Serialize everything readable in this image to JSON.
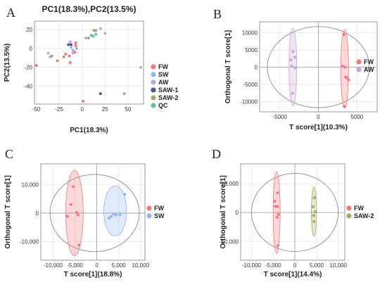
{
  "colors": {
    "FW": "#f0787b",
    "SW": "#8fb5ef",
    "AW": "#c3a6d6",
    "SAW-1": "#4c5791",
    "SAW-2": "#a8a769",
    "QC": "#66bf9a"
  },
  "chart_data": [
    {
      "panel": "A",
      "type": "scatter",
      "title": "PC1(18.3%),PC2(13.5%)",
      "xlabel": "PC1(18.3%)",
      "ylabel": "PC2(13.5%)",
      "xlim": [
        -52,
        67
      ],
      "ylim": [
        -59,
        29
      ],
      "xticks": [
        -50,
        -25,
        0,
        25,
        50
      ],
      "xtick_labels": [
        "-50",
        "-25",
        "0",
        "25",
        "50"
      ],
      "yticks": [
        -40,
        -20,
        0,
        20
      ],
      "ytick_labels": [
        "-40",
        "-20",
        "0",
        "20"
      ],
      "grid": true,
      "legend_position": "right",
      "series": [
        {
          "name": "FW",
          "points": [
            [
              -50,
              -18
            ],
            [
              -27,
              -13
            ],
            [
              -18,
              -6
            ],
            [
              -14,
              -8
            ],
            [
              -13,
              -15
            ],
            [
              -8,
              -4
            ],
            [
              -7,
              3
            ],
            [
              -7,
              6
            ],
            [
              1,
              -56
            ]
          ]
        },
        {
          "name": "SW",
          "points": [
            [
              -12,
              1
            ],
            [
              -10,
              -2
            ],
            [
              20,
              21
            ],
            [
              25,
              16
            ],
            [
              64,
              -20
            ]
          ]
        },
        {
          "name": "AW",
          "points": [
            [
              -37,
              -5
            ],
            [
              -35,
              -9
            ],
            [
              -13,
              7
            ],
            [
              -10,
              -5
            ],
            [
              -6,
              0
            ],
            [
              4,
              11
            ]
          ]
        },
        {
          "name": "SAW-1",
          "points": [
            [
              -15,
              4
            ],
            [
              -12,
              4
            ],
            [
              20,
              -48
            ]
          ]
        },
        {
          "name": "SAW-2",
          "points": [
            [
              -33,
              -8
            ],
            [
              -20,
              -9
            ],
            [
              7,
              11
            ],
            [
              13,
              19
            ],
            [
              15,
              19
            ],
            [
              46,
              -48
            ]
          ]
        },
        {
          "name": "QC",
          "points": [
            [
              10,
              14
            ],
            [
              12,
              13
            ],
            [
              15,
              15
            ]
          ]
        }
      ]
    },
    {
      "panel": "B",
      "type": "scatter",
      "xlabel": "T score[1](10.3%)",
      "ylabel": "Orthogonal T score[1]",
      "xlim": [
        -7600,
        7600
      ],
      "ylim": [
        -13000,
        13200
      ],
      "xticks": [
        -5000,
        0,
        5000
      ],
      "xtick_labels": [
        "-5000",
        "0",
        "5000"
      ],
      "yticks": [
        -10000,
        -5000,
        0,
        5000,
        10000
      ],
      "ytick_labels": [
        "-10000",
        "-5000",
        "0",
        "5000",
        "10000"
      ],
      "grid": true,
      "legend_position": "right",
      "ellipse": {
        "cx": 0,
        "cy": 0,
        "rx": 6600,
        "ry": 11800
      },
      "series": [
        {
          "name": "FW",
          "points": [
            [
              3300,
              9500
            ],
            [
              3150,
              300
            ],
            [
              3450,
              0
            ],
            [
              3500,
              -2900
            ],
            [
              3700,
              -3100
            ],
            [
              3900,
              -3700
            ],
            [
              3350,
              -11400
            ]
          ],
          "group_ellipse": {
            "cx": 3400,
            "cy": -500,
            "rx": 500,
            "ry": 11500
          }
        },
        {
          "name": "AW",
          "points": [
            [
              -3300,
              4500
            ],
            [
              -3050,
              2900
            ],
            [
              -3550,
              2100
            ],
            [
              -3450,
              300
            ],
            [
              -3000,
              -200
            ],
            [
              -3350,
              -7600
            ]
          ],
          "group_ellipse": {
            "cx": -3300,
            "cy": 100,
            "rx": 500,
            "ry": 11300
          }
        }
      ]
    },
    {
      "panel": "C",
      "type": "scatter",
      "xlabel": "T score[1](18.8%)",
      "ylabel": "Orthogonal T score[1]",
      "xlim": [
        -12800,
        11000
      ],
      "ylim": [
        -16500,
        17200
      ],
      "xticks": [
        -10000,
        -5000,
        0,
        5000,
        10000
      ],
      "xtick_labels": [
        "-10,000",
        "-5,000",
        "0",
        "5,000",
        "10,000"
      ],
      "yticks": [
        -10000,
        0,
        10000
      ],
      "ytick_labels": [
        "-10,000",
        "0",
        "10,000"
      ],
      "grid": true,
      "legend_position": "right",
      "ellipse": {
        "cx": -500,
        "cy": 0,
        "rx": 10200,
        "ry": 13500
      },
      "series": [
        {
          "name": "FW",
          "points": [
            [
              -5400,
              9200
            ],
            [
              -5900,
              3000
            ],
            [
              -4600,
              200
            ],
            [
              -4300,
              -700
            ],
            [
              -6700,
              -1200
            ],
            [
              -4100,
              -11200
            ]
          ],
          "group_ellipse": {
            "cx": -5100,
            "cy": 0,
            "rx": 2000,
            "ry": 14900
          }
        },
        {
          "name": "SW",
          "points": [
            [
              6400,
              6500
            ],
            [
              3800,
              -300
            ],
            [
              4400,
              -700
            ],
            [
              5300,
              -600
            ],
            [
              3300,
              -1200
            ],
            [
              2800,
              -1800
            ]
          ],
          "group_ellipse": {
            "cx": 4200,
            "cy": 700,
            "rx": 2600,
            "ry": 8800
          }
        }
      ]
    },
    {
      "panel": "D",
      "type": "scatter",
      "xlabel": "T score[1](14.4%)",
      "ylabel": "Orthogonal T score[1]",
      "xlim": [
        -12500,
        11500
      ],
      "ylim": [
        -16500,
        16800
      ],
      "xticks": [
        -10000,
        -5000,
        0,
        5000,
        10000
      ],
      "xtick_labels": [
        "-10,000",
        "-5,000",
        "0",
        "5,000",
        "10,000"
      ],
      "yticks": [
        -10000,
        0,
        10000
      ],
      "ytick_labels": [
        "-10,000",
        "0",
        "10,000"
      ],
      "grid": true,
      "legend_position": "right",
      "ellipse": {
        "cx": 0,
        "cy": 0,
        "rx": 10000,
        "ry": 13500
      },
      "series": [
        {
          "name": "FW",
          "points": [
            [
              -4000,
              6800
            ],
            [
              -4600,
              3900
            ],
            [
              -4500,
              2100
            ],
            [
              -4000,
              2000
            ],
            [
              -3800,
              -700
            ],
            [
              -4100,
              -1700
            ],
            [
              -3900,
              -11500
            ]
          ],
          "group_ellipse": {
            "cx": -4200,
            "cy": 0,
            "rx": 800,
            "ry": 14200
          }
        },
        {
          "name": "SAW-2",
          "points": [
            [
              4500,
              5100
            ],
            [
              4200,
              2000
            ],
            [
              4700,
              200
            ],
            [
              4300,
              -1000
            ],
            [
              4400,
              -3100
            ]
          ],
          "group_ellipse": {
            "cx": 4400,
            "cy": 200,
            "rx": 600,
            "ry": 8500
          }
        }
      ]
    }
  ]
}
